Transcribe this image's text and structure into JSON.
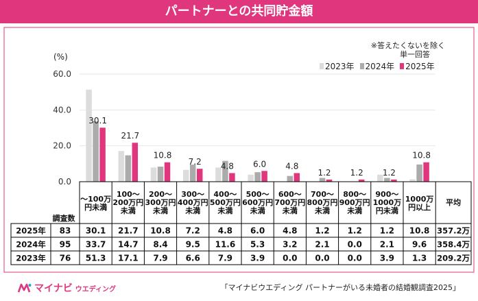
{
  "header": {
    "title": "パートナーとの共同貯金額"
  },
  "notes": {
    "line1": "※答えたくないを除く",
    "line2": "単一回答"
  },
  "colors": {
    "y2023": "#dcdcdc",
    "y2024": "#ababab",
    "y2025": "#e0367e",
    "accent": "#e0367e"
  },
  "brand": {
    "name": "マイナビ",
    "sub": "ウエディング"
  },
  "source": "「マイナビウエディング パートナーがいる未婚者の結婚観調査2025」",
  "chart_data": {
    "type": "bar",
    "title": "パートナーとの共同貯金額",
    "ylabel": "(%)",
    "ylim": [
      0,
      60
    ],
    "yticks": [
      "0.0",
      "20.0",
      "40.0",
      "60.0"
    ],
    "categories": [
      [
        "～100万",
        "円未満"
      ],
      [
        "100～",
        "200万円",
        "未満"
      ],
      [
        "200～",
        "300万円",
        "未満"
      ],
      [
        "300～",
        "400万円",
        "未満"
      ],
      [
        "400～",
        "500万円",
        "未満"
      ],
      [
        "500～",
        "600万円",
        "未満"
      ],
      [
        "600～",
        "700万円",
        "未満"
      ],
      [
        "700～",
        "800万円",
        "未満"
      ],
      [
        "800～",
        "900万円",
        "未満"
      ],
      [
        "900～",
        "1000万",
        "円未満"
      ],
      [
        "1000万",
        "円以上"
      ]
    ],
    "series": [
      {
        "name": "2023年",
        "values": [
          51.3,
          17.1,
          7.9,
          6.6,
          7.9,
          3.9,
          0.0,
          0.0,
          0.0,
          3.9,
          1.3
        ]
      },
      {
        "name": "2024年",
        "values": [
          33.7,
          14.7,
          8.4,
          9.5,
          11.6,
          5.3,
          3.2,
          2.1,
          0.0,
          2.1,
          9.6
        ]
      },
      {
        "name": "2025年",
        "values": [
          30.1,
          21.7,
          10.8,
          7.2,
          4.8,
          6.0,
          4.8,
          1.2,
          1.2,
          1.2,
          10.8
        ]
      }
    ],
    "bar_labels": [
      "30.1",
      "21.7",
      "10.8",
      "7.2",
      "4.8",
      "6.0",
      "4.8",
      "1.2",
      "1.2",
      "1.2",
      "10.8"
    ],
    "table": {
      "count_header": "調査数",
      "avg_header": "平均",
      "rows": [
        {
          "year": "2025年",
          "n": "83",
          "values": [
            "30.1",
            "21.7",
            "10.8",
            "7.2",
            "4.8",
            "6.0",
            "4.8",
            "1.2",
            "1.2",
            "1.2",
            "10.8"
          ],
          "avg": "357.2万"
        },
        {
          "year": "2024年",
          "n": "95",
          "values": [
            "33.7",
            "14.7",
            "8.4",
            "9.5",
            "11.6",
            "5.3",
            "3.2",
            "2.1",
            "0.0",
            "2.1",
            "9.6"
          ],
          "avg": "358.4万"
        },
        {
          "year": "2023年",
          "n": "76",
          "values": [
            "51.3",
            "17.1",
            "7.9",
            "6.6",
            "7.9",
            "3.9",
            "0.0",
            "0.0",
            "0.0",
            "3.9",
            "1.3"
          ],
          "avg": "209.2万"
        }
      ]
    }
  }
}
